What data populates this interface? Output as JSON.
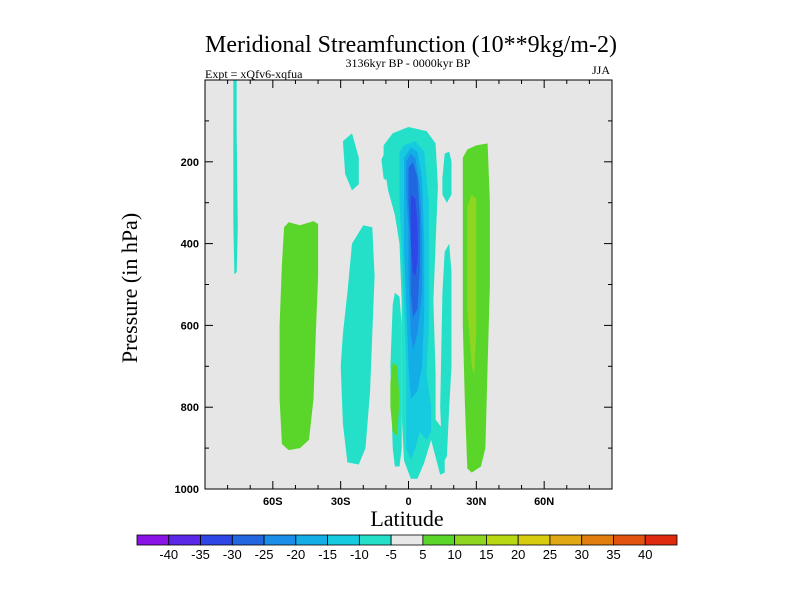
{
  "chart_data": {
    "type": "contour",
    "title": "Meridional Streamfunction (10**9kg/m-2)",
    "experiment": "Expt = xQfv6-xqfua",
    "period": "3136kyr BP - 0000kyr BP",
    "season": "JJA",
    "xlabel": "Latitude",
    "ylabel": "Pressure (in hPa)",
    "xlim": [
      -90,
      90
    ],
    "ylim": [
      1000,
      0
    ],
    "x_ticks": [
      {
        "value": -60,
        "label": "60S"
      },
      {
        "value": -30,
        "label": "30S"
      },
      {
        "value": 0,
        "label": "0"
      },
      {
        "value": 30,
        "label": "30N"
      },
      {
        "value": 60,
        "label": "60N"
      }
    ],
    "y_ticks": [
      {
        "value": 200,
        "label": "200"
      },
      {
        "value": 400,
        "label": "400"
      },
      {
        "value": 600,
        "label": "600"
      },
      {
        "value": 800,
        "label": "800"
      },
      {
        "value": 1000,
        "label": "1000"
      }
    ],
    "colorbar": {
      "labels": [
        "-40",
        "-35",
        "-30",
        "-25",
        "-20",
        "-15",
        "-10",
        "-5",
        "5",
        "10",
        "15",
        "20",
        "25",
        "30",
        "35",
        "40"
      ],
      "colors": [
        "#8a14e6",
        "#5a28e6",
        "#2e46e6",
        "#2266e0",
        "#1a8ee8",
        "#14aee6",
        "#16cbe0",
        "#24e0c8",
        "#e8e8e8",
        "#5ad62a",
        "#8ed620",
        "#b8d814",
        "#d8cc10",
        "#e0a812",
        "#e07e10",
        "#e05410",
        "#e02a10"
      ]
    },
    "background_color": "#e6e6e6",
    "regions": [
      {
        "label": "thin cyan strip 77S",
        "color": "#24e0c8",
        "points": [
          [
            -77.5,
            0
          ],
          [
            -76,
            0
          ],
          [
            -76,
            130
          ],
          [
            -75.5,
            360
          ],
          [
            -76,
            470
          ],
          [
            -77,
            475
          ],
          [
            -77.5,
            350
          ],
          [
            -77.5,
            130
          ]
        ]
      },
      {
        "label": "green cell 55S",
        "color": "#5ad62a",
        "points": [
          [
            -55,
            360
          ],
          [
            -53,
            348
          ],
          [
            -48,
            355
          ],
          [
            -42,
            345
          ],
          [
            -40,
            352
          ],
          [
            -40,
            480
          ],
          [
            -41,
            620
          ],
          [
            -42,
            780
          ],
          [
            -44,
            880
          ],
          [
            -48,
            900
          ],
          [
            -53,
            905
          ],
          [
            -56,
            890
          ],
          [
            -57,
            780
          ],
          [
            -57,
            600
          ],
          [
            -56,
            450
          ]
        ]
      },
      {
        "label": "cyan cell 30S",
        "color": "#24e0c8",
        "points": [
          [
            -27,
            520
          ],
          [
            -25,
            400
          ],
          [
            -20,
            355
          ],
          [
            -16,
            360
          ],
          [
            -15,
            480
          ],
          [
            -16,
            620
          ],
          [
            -17,
            760
          ],
          [
            -19,
            900
          ],
          [
            -22,
            940
          ],
          [
            -27,
            935
          ],
          [
            -29,
            840
          ],
          [
            -30,
            700
          ],
          [
            -29,
            620
          ]
        ]
      },
      {
        "label": "cyan patch 28S upper",
        "color": "#24e0c8",
        "points": [
          [
            -28,
            230
          ],
          [
            -29,
            150
          ],
          [
            -25,
            130
          ],
          [
            -22,
            190
          ],
          [
            -22,
            255
          ],
          [
            -25,
            270
          ]
        ]
      },
      {
        "label": "cyan small 10S",
        "color": "#24e0c8",
        "points": [
          [
            -12,
            195
          ],
          [
            -10,
            170
          ],
          [
            -9,
            195
          ],
          [
            -10,
            245
          ],
          [
            -11,
            240
          ]
        ]
      },
      {
        "label": "cyan tiny dot",
        "color": "#24e0c8",
        "points": [
          [
            -8.5,
            255
          ],
          [
            -7.5,
            248
          ],
          [
            -7,
            258
          ],
          [
            -8,
            262
          ]
        ]
      },
      {
        "label": "cyan column -5",
        "color": "#24e0c8",
        "points": [
          [
            -7,
            550
          ],
          [
            -6,
            520
          ],
          [
            -4,
            530
          ],
          [
            -3,
            600
          ],
          [
            -3,
            900
          ],
          [
            -4,
            945
          ],
          [
            -6,
            945
          ],
          [
            -7,
            900
          ],
          [
            -8,
            700
          ]
        ]
      },
      {
        "label": "green cell 7S",
        "color": "#5ad62a",
        "points": [
          [
            -8,
            740
          ],
          [
            -7,
            690
          ],
          [
            -5,
            700
          ],
          [
            -4,
            780
          ],
          [
            -5,
            870
          ],
          [
            -7,
            860
          ],
          [
            -8,
            800
          ]
        ]
      },
      {
        "label": "main cyan column",
        "color": "#24e0c8",
        "points": [
          [
            -11,
            160
          ],
          [
            -7,
            130
          ],
          [
            0,
            115
          ],
          [
            8,
            125
          ],
          [
            12,
            155
          ],
          [
            13,
            260
          ],
          [
            12,
            400
          ],
          [
            11,
            540
          ],
          [
            12,
            720
          ],
          [
            12,
            830
          ],
          [
            16,
            860
          ],
          [
            16,
            960
          ],
          [
            14,
            965
          ],
          [
            10,
            880
          ],
          [
            7,
            935
          ],
          [
            4,
            975
          ],
          [
            1,
            975
          ],
          [
            -2,
            930
          ],
          [
            -3,
            820
          ],
          [
            -3,
            540
          ],
          [
            -4,
            400
          ],
          [
            -6,
            330
          ],
          [
            -9,
            270
          ],
          [
            -11,
            200
          ]
        ]
      },
      {
        "label": "main -10",
        "color": "#16cbe0",
        "points": [
          [
            -4,
            175
          ],
          [
            -2,
            160
          ],
          [
            3,
            150
          ],
          [
            7,
            175
          ],
          [
            9,
            300
          ],
          [
            9,
            460
          ],
          [
            9,
            600
          ],
          [
            8,
            720
          ],
          [
            10,
            800
          ],
          [
            10,
            860
          ],
          [
            8,
            880
          ],
          [
            5,
            860
          ],
          [
            3,
            900
          ],
          [
            1,
            930
          ],
          [
            -1,
            900
          ],
          [
            -1,
            700
          ],
          [
            -2,
            540
          ],
          [
            -3,
            400
          ],
          [
            -4,
            300
          ]
        ]
      },
      {
        "label": "main -15",
        "color": "#14aee6",
        "points": [
          [
            -2,
            190
          ],
          [
            1,
            165
          ],
          [
            4,
            175
          ],
          [
            6,
            240
          ],
          [
            7,
            400
          ],
          [
            7,
            560
          ],
          [
            6,
            700
          ],
          [
            4,
            760
          ],
          [
            1,
            780
          ],
          [
            0,
            700
          ],
          [
            -1,
            540
          ],
          [
            -2,
            400
          ],
          [
            -2,
            300
          ]
        ]
      },
      {
        "label": "main -20",
        "color": "#1a8ee8",
        "points": [
          [
            -1,
            200
          ],
          [
            1,
            180
          ],
          [
            3,
            190
          ],
          [
            5,
            260
          ],
          [
            6,
            380
          ],
          [
            6,
            520
          ],
          [
            4,
            620
          ],
          [
            2,
            660
          ],
          [
            1,
            620
          ],
          [
            0,
            480
          ],
          [
            0,
            360
          ],
          [
            -1,
            280
          ]
        ]
      },
      {
        "label": "main -25",
        "color": "#2266e0",
        "points": [
          [
            0,
            215
          ],
          [
            2,
            200
          ],
          [
            4,
            240
          ],
          [
            5,
            340
          ],
          [
            5,
            460
          ],
          [
            4,
            560
          ],
          [
            2,
            580
          ],
          [
            1,
            520
          ],
          [
            1,
            400
          ],
          [
            0,
            300
          ]
        ]
      },
      {
        "label": "main -30",
        "color": "#2e46e6",
        "points": [
          [
            1,
            280
          ],
          [
            3,
            290
          ],
          [
            4,
            360
          ],
          [
            4,
            440
          ],
          [
            3,
            480
          ],
          [
            2,
            470
          ],
          [
            1,
            400
          ]
        ]
      },
      {
        "label": "cyan 15N upper",
        "color": "#24e0c8",
        "points": [
          [
            15,
            240
          ],
          [
            16,
            180
          ],
          [
            18,
            175
          ],
          [
            19,
            200
          ],
          [
            19,
            280
          ],
          [
            17,
            300
          ],
          [
            15,
            280
          ]
        ]
      },
      {
        "label": "cyan 15N lower",
        "color": "#24e0c8",
        "points": [
          [
            15,
            520
          ],
          [
            16,
            420
          ],
          [
            18,
            400
          ],
          [
            19,
            470
          ],
          [
            19,
            700
          ],
          [
            18,
            800
          ],
          [
            17,
            920
          ],
          [
            15,
            940
          ],
          [
            14,
            800
          ]
        ]
      },
      {
        "label": "green cell 28N",
        "color": "#5ad62a",
        "points": [
          [
            24,
            190
          ],
          [
            26,
            170
          ],
          [
            30,
            160
          ],
          [
            35,
            155
          ],
          [
            36,
            300
          ],
          [
            36,
            500
          ],
          [
            35,
            700
          ],
          [
            34,
            900
          ],
          [
            32,
            945
          ],
          [
            28,
            960
          ],
          [
            26,
            950
          ],
          [
            25,
            800
          ],
          [
            24,
            600
          ],
          [
            24,
            400
          ]
        ]
      },
      {
        "label": "green 10 core 28N",
        "color": "#8ed620",
        "points": [
          [
            26,
            310
          ],
          [
            28,
            280
          ],
          [
            30,
            290
          ],
          [
            30,
            460
          ],
          [
            30,
            620
          ],
          [
            29,
            720
          ],
          [
            28,
            700
          ],
          [
            26,
            560
          ],
          [
            26,
            430
          ]
        ]
      }
    ]
  }
}
